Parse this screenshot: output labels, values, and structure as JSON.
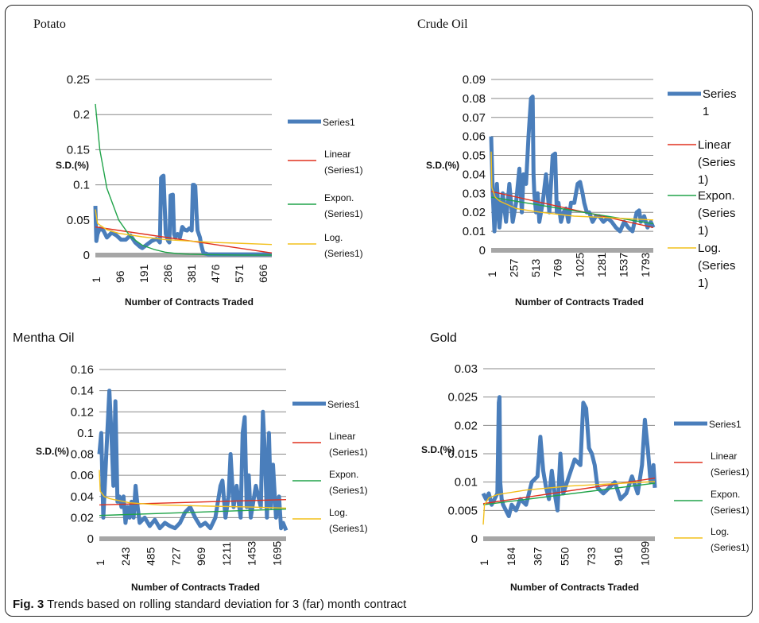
{
  "caption": {
    "label": "Fig. 3",
    "text": "Trends based on rolling standard deviation for 3 (far) month contract"
  },
  "colors": {
    "series": "#4a7ebb",
    "linear": "#e0301e",
    "expon": "#21a44a",
    "log": "#f2c01b",
    "grid": "#888888",
    "axis_band": "#a6a6a6"
  },
  "chart_data": [
    {
      "type": "line",
      "title": "Potato",
      "xlabel": "Number of Contracts Traded",
      "ylabel": "S.D.(%)",
      "ylim": [
        0,
        0.25
      ],
      "yticks": [
        0,
        0.05,
        0.1,
        0.15,
        0.2,
        0.25
      ],
      "ytick_labels": [
        "0",
        "0.05",
        "0.1",
        "0.15",
        "0.2",
        "0.25"
      ],
      "xlim": [
        1,
        750
      ],
      "xticks": [
        "1",
        "96",
        "191",
        "286",
        "381",
        "476",
        "571",
        "666"
      ],
      "legend": [
        "Series1",
        "Linear (Series1)",
        "Expon. (Series1)",
        "Log. (Series1)"
      ],
      "series": [
        {
          "name": "Series1",
          "x": [
            1,
            5,
            10,
            20,
            35,
            50,
            70,
            90,
            110,
            130,
            150,
            170,
            190,
            200,
            220,
            240,
            260,
            270,
            275,
            280,
            285,
            290,
            300,
            310,
            315,
            320,
            330,
            335,
            340,
            350,
            360,
            370,
            380,
            390,
            400,
            410,
            415,
            420,
            425,
            430,
            435,
            440,
            445,
            450,
            455,
            460,
            470,
            480,
            500,
            600,
            750
          ],
          "y": [
            0.07,
            0.02,
            0.03,
            0.038,
            0.035,
            0.025,
            0.032,
            0.028,
            0.022,
            0.022,
            0.028,
            0.018,
            0.012,
            0.01,
            0.015,
            0.02,
            0.023,
            0.02,
            0.018,
            0.11,
            0.112,
            0.113,
            0.03,
            0.02,
            0.018,
            0.085,
            0.086,
            0.03,
            0.025,
            0.03,
            0.025,
            0.04,
            0.036,
            0.035,
            0.038,
            0.035,
            0.1,
            0.1,
            0.098,
            0.06,
            0.035,
            0.03,
            0.025,
            0.015,
            0.008,
            0.003,
            0.002,
            0.001,
            0.001,
            0.001,
            0.001
          ]
        },
        {
          "name": "Linear (Series1)",
          "x": [
            1,
            750
          ],
          "y": [
            0.04,
            0.003
          ]
        },
        {
          "name": "Expon. (Series1)",
          "x": [
            1,
            20,
            50,
            100,
            150,
            200,
            250,
            300,
            350,
            400,
            500,
            600,
            750
          ],
          "y": [
            0.215,
            0.15,
            0.095,
            0.05,
            0.026,
            0.014,
            0.008,
            0.004,
            0.002,
            0.0012,
            0.0004,
            0.0001,
            0.0
          ]
        },
        {
          "name": "Log. (Series1)",
          "x": [
            1,
            10,
            50,
            100,
            200,
            300,
            400,
            500,
            600,
            750
          ],
          "y": [
            0.065,
            0.045,
            0.036,
            0.031,
            0.026,
            0.022,
            0.02,
            0.018,
            0.017,
            0.015
          ]
        }
      ]
    },
    {
      "type": "line",
      "title": "Crude Oil",
      "xlabel": "Number of Contracts Traded",
      "ylabel": "S.D.(%)",
      "ylim": [
        0,
        0.09
      ],
      "yticks": [
        0,
        0.01,
        0.02,
        0.03,
        0.04,
        0.05,
        0.06,
        0.07,
        0.08,
        0.09
      ],
      "ytick_labels": [
        "0",
        "0.01",
        "0.02",
        "0.03",
        "0.04",
        "0.05",
        "0.06",
        "0.07",
        "0.08",
        "0.09"
      ],
      "xlim": [
        1,
        1950
      ],
      "xticks": [
        "1",
        "257",
        "513",
        "769",
        "1025",
        "1281",
        "1537",
        "1793"
      ],
      "legend": [
        "Series 1",
        "Linear (Series 1)",
        "Expon. (Series 1)",
        "Log. (Series 1)"
      ],
      "series": [
        {
          "name": "Series 1",
          "x": [
            1,
            20,
            40,
            70,
            100,
            140,
            180,
            220,
            260,
            300,
            340,
            370,
            390,
            420,
            450,
            480,
            500,
            510,
            520,
            540,
            560,
            580,
            620,
            660,
            700,
            740,
            770,
            790,
            810,
            840,
            870,
            900,
            930,
            960,
            1000,
            1040,
            1070,
            1100,
            1120,
            1150,
            1180,
            1220,
            1260,
            1300,
            1350,
            1400,
            1450,
            1500,
            1550,
            1600,
            1650,
            1700,
            1750,
            1780,
            1800,
            1840,
            1880,
            1920,
            1950
          ],
          "y": [
            0.06,
            0.03,
            0.01,
            0.035,
            0.012,
            0.03,
            0.015,
            0.035,
            0.015,
            0.025,
            0.043,
            0.02,
            0.04,
            0.035,
            0.06,
            0.08,
            0.081,
            0.04,
            0.03,
            0.02,
            0.03,
            0.015,
            0.025,
            0.04,
            0.02,
            0.05,
            0.051,
            0.02,
            0.025,
            0.015,
            0.02,
            0.022,
            0.015,
            0.025,
            0.025,
            0.035,
            0.036,
            0.03,
            0.025,
            0.02,
            0.02,
            0.015,
            0.018,
            0.018,
            0.015,
            0.017,
            0.015,
            0.012,
            0.01,
            0.015,
            0.012,
            0.01,
            0.02,
            0.021,
            0.015,
            0.018,
            0.012,
            0.015,
            0.012
          ]
        },
        {
          "name": "Linear (Series 1)",
          "x": [
            1,
            1950
          ],
          "y": [
            0.031,
            0.012
          ]
        },
        {
          "name": "Expon. (Series 1)",
          "x": [
            1,
            1950
          ],
          "y": [
            0.028,
            0.014
          ]
        },
        {
          "name": "Log. (Series 1)",
          "x": [
            1,
            10,
            50,
            100,
            300,
            600,
            1000,
            1500,
            1950
          ],
          "y": [
            0.052,
            0.033,
            0.028,
            0.026,
            0.022,
            0.02,
            0.018,
            0.017,
            0.016
          ]
        }
      ]
    },
    {
      "type": "line",
      "title": "Mentha Oil",
      "xlabel": "Number of Contracts Traded",
      "ylabel": "S.D.(%)",
      "ylim": [
        0,
        0.16
      ],
      "yticks": [
        0,
        0.02,
        0.04,
        0.06,
        0.08,
        0.1,
        0.12,
        0.14,
        0.16
      ],
      "ytick_labels": [
        "0",
        "0.02",
        "0.04",
        "0.06",
        "0.08",
        "0.1",
        "0.12",
        "0.14",
        "0.16"
      ],
      "xlim": [
        1,
        1850
      ],
      "xticks": [
        "1",
        "243",
        "485",
        "727",
        "969",
        "1211",
        "1453",
        "1695"
      ],
      "legend": [
        "Series1",
        "Linear (Series1)",
        "Expon. (Series1)",
        "Log. (Series1)"
      ],
      "series": [
        {
          "name": "Series1",
          "x": [
            1,
            20,
            40,
            60,
            80,
            100,
            120,
            140,
            160,
            180,
            200,
            220,
            240,
            260,
            280,
            300,
            320,
            340,
            360,
            380,
            400,
            450,
            500,
            550,
            600,
            650,
            700,
            750,
            800,
            850,
            900,
            950,
            1000,
            1050,
            1100,
            1150,
            1200,
            1220,
            1250,
            1280,
            1300,
            1330,
            1360,
            1400,
            1420,
            1440,
            1460,
            1480,
            1500,
            1550,
            1600,
            1620,
            1640,
            1660,
            1680,
            1700,
            1720,
            1750,
            1780,
            1800,
            1820,
            1850
          ],
          "y": [
            0.08,
            0.1,
            0.02,
            0.06,
            0.1,
            0.14,
            0.1,
            0.05,
            0.13,
            0.035,
            0.04,
            0.03,
            0.04,
            0.015,
            0.03,
            0.02,
            0.035,
            0.02,
            0.05,
            0.03,
            0.015,
            0.02,
            0.012,
            0.018,
            0.01,
            0.015,
            0.012,
            0.01,
            0.015,
            0.025,
            0.03,
            0.02,
            0.012,
            0.015,
            0.01,
            0.02,
            0.05,
            0.055,
            0.02,
            0.04,
            0.08,
            0.03,
            0.05,
            0.02,
            0.1,
            0.115,
            0.03,
            0.06,
            0.02,
            0.05,
            0.03,
            0.12,
            0.08,
            0.02,
            0.1,
            0.03,
            0.07,
            0.02,
            0.04,
            0.01,
            0.015,
            0.008
          ]
        },
        {
          "name": "Linear (Series1)",
          "x": [
            1,
            1850
          ],
          "y": [
            0.032,
            0.037
          ]
        },
        {
          "name": "Expon. (Series1)",
          "x": [
            1,
            1850
          ],
          "y": [
            0.022,
            0.028
          ]
        },
        {
          "name": "Log. (Series1)",
          "x": [
            1,
            10,
            50,
            100,
            300,
            600,
            1000,
            1500,
            1850
          ],
          "y": [
            0.065,
            0.045,
            0.04,
            0.038,
            0.034,
            0.032,
            0.031,
            0.03,
            0.029
          ]
        }
      ]
    },
    {
      "type": "line",
      "title": "Gold",
      "xlabel": "Number of Contracts Traded",
      "ylabel": "S.D.(%)",
      "ylim": [
        0,
        0.03
      ],
      "yticks": [
        0,
        0.005,
        0.01,
        0.015,
        0.02,
        0.025,
        0.03
      ],
      "ytick_labels": [
        "0",
        "0.005",
        "0.01",
        "0.015",
        "0.02",
        "0.025",
        "0.03"
      ],
      "xlim": [
        1,
        1200
      ],
      "xticks": [
        "1",
        "184",
        "367",
        "550",
        "733",
        "916",
        "1099"
      ],
      "legend": [
        "Series1",
        "Linear (Series1)",
        "Expon. (Series1)",
        "Log. (Series1)"
      ],
      "series": [
        {
          "name": "Series1",
          "x": [
            1,
            20,
            40,
            60,
            80,
            100,
            110,
            115,
            120,
            130,
            140,
            160,
            180,
            200,
            230,
            260,
            300,
            340,
            380,
            400,
            420,
            440,
            460,
            480,
            500,
            520,
            540,
            560,
            600,
            640,
            680,
            700,
            720,
            740,
            760,
            780,
            800,
            840,
            880,
            920,
            960,
            1000,
            1040,
            1080,
            1110,
            1130,
            1150,
            1170,
            1190,
            1200
          ],
          "y": [
            0.008,
            0.007,
            0.008,
            0.006,
            0.007,
            0.008,
            0.024,
            0.025,
            0.01,
            0.007,
            0.006,
            0.005,
            0.004,
            0.006,
            0.005,
            0.007,
            0.006,
            0.01,
            0.011,
            0.018,
            0.012,
            0.009,
            0.007,
            0.012,
            0.008,
            0.005,
            0.015,
            0.008,
            0.011,
            0.014,
            0.013,
            0.024,
            0.023,
            0.016,
            0.015,
            0.013,
            0.009,
            0.008,
            0.009,
            0.01,
            0.007,
            0.008,
            0.011,
            0.008,
            0.013,
            0.021,
            0.016,
            0.01,
            0.013,
            0.009
          ]
        },
        {
          "name": "Linear (Series1)",
          "x": [
            1,
            1200
          ],
          "y": [
            0.0062,
            0.0107
          ]
        },
        {
          "name": "Expon. (Series1)",
          "x": [
            1,
            1200
          ],
          "y": [
            0.006,
            0.0098
          ]
        },
        {
          "name": "Log. (Series1)",
          "x": [
            1,
            10,
            40,
            100,
            300,
            600,
            900,
            1200
          ],
          "y": [
            0.0025,
            0.006,
            0.0072,
            0.0078,
            0.0086,
            0.0093,
            0.0097,
            0.0101
          ]
        }
      ]
    }
  ]
}
